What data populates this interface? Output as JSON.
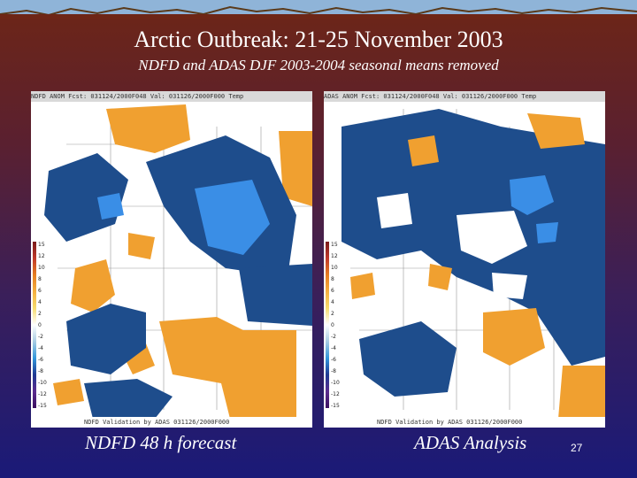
{
  "slide": {
    "title": "Arctic Outbreak: 21-25 November 2003",
    "subtitle": "NDFD and ADAS DJF 2003-2004 seasonal means removed",
    "page_number": "27"
  },
  "panels": [
    {
      "caption": "NDFD 48 h forecast",
      "header_text": "NDFD ANOM  Fcst: 031124/2000F048  Val: 031126/2000F000  Temp",
      "footer_text": "NDFD Validation by ADAS 031126/2000F000"
    },
    {
      "caption": "ADAS Analysis",
      "header_text": "ADAS ANOM  Fcst: 031124/2000F048  Val: 031126/2000F000  Temp",
      "footer_text": "NDFD Validation by ADAS 031126/2000F000"
    }
  ],
  "color_scale": {
    "labels": [
      "15",
      "12",
      "10",
      "8",
      "6",
      "4",
      "2",
      "0",
      "-2",
      "-4",
      "-6",
      "-8",
      "-10",
      "-12",
      "-15"
    ]
  },
  "colors": {
    "warm_anomaly": "#f0a030",
    "cold_anomaly": "#1e4d8c",
    "strong_cold": "#3a8ee6"
  }
}
